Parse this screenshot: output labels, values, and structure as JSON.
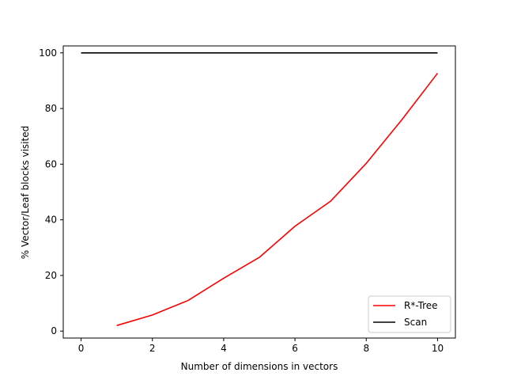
{
  "chart_data": {
    "type": "line",
    "xlabel": "Number of dimensions in vectors",
    "ylabel": "% Vector/Leaf blocks visited",
    "xlim": [
      -0.5,
      10.5
    ],
    "ylim": [
      -2.5,
      102.5
    ],
    "xticks": [
      0,
      2,
      4,
      6,
      8,
      10
    ],
    "yticks": [
      0,
      20,
      40,
      60,
      80,
      100
    ],
    "grid": false,
    "legend_position": "lower-right",
    "series": [
      {
        "name": "R*-Tree",
        "color": "#ff0000",
        "x": [
          1,
          2,
          3,
          4,
          5,
          6,
          7,
          8,
          9,
          10
        ],
        "y": [
          2.0,
          5.8,
          11.0,
          19.0,
          26.5,
          37.7,
          46.7,
          60.3,
          76.0,
          92.7
        ]
      },
      {
        "name": "Scan",
        "color": "#000000",
        "x": [
          0,
          10
        ],
        "y": [
          100,
          100
        ]
      }
    ]
  }
}
